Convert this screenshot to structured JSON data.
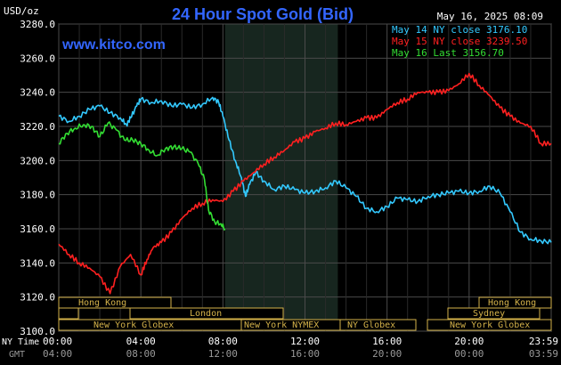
{
  "header": {
    "unit": "USD/oz",
    "title": "24 Hour Spot Gold (Bid)",
    "timestamp": "May 16, 2025 08:09",
    "site": "www.kitco.com"
  },
  "chart_data": {
    "type": "line",
    "title": "24 Hour Spot Gold (Bid)",
    "ylabel": "USD/oz",
    "ylim": [
      3100,
      3280
    ],
    "yticks": [
      "3280.0",
      "3260.0",
      "3240.0",
      "3220.0",
      "3200.0",
      "3180.0",
      "3160.0",
      "3140.0",
      "3120.0",
      "3100.0"
    ],
    "xlim_hours": [
      0,
      24
    ],
    "time_axis_labels": {
      "ny_time_label": "NY Time",
      "gmt_label": "GMT",
      "ny_time": [
        "00:00",
        "04:00",
        "08:00",
        "12:00",
        "16:00",
        "20:00",
        "23:59"
      ],
      "gmt": [
        "04:00",
        "08:00",
        "12:00",
        "16:00",
        "20:00",
        "00:00",
        "03:59"
      ]
    },
    "grid": true,
    "shaded_session_hours": [
      8.1,
      13.6
    ],
    "legend": {
      "placement": "top-right"
    },
    "series": [
      {
        "name": "May 14 NY close 3176.10",
        "color": "#33c9ff",
        "x": [
          0,
          0.5,
          1,
          1.5,
          2,
          2.5,
          3,
          3.3,
          3.5,
          3.8,
          4,
          4.5,
          5,
          5.5,
          6,
          6.5,
          7,
          7.5,
          7.8,
          8,
          8.3,
          8.6,
          8.9,
          9.1,
          9.3,
          9.6,
          10,
          10.5,
          11,
          11.5,
          12,
          12.5,
          13,
          13.5,
          14,
          14.5,
          15,
          15.5,
          16,
          16.5,
          17,
          17.5,
          18,
          18.5,
          19,
          19.5,
          20,
          20.5,
          21,
          21.5,
          22,
          22.5,
          23,
          23.5,
          24
        ],
        "values": [
          3226,
          3223,
          3226,
          3230,
          3232,
          3228,
          3225,
          3221,
          3225,
          3232,
          3236,
          3234,
          3235,
          3232,
          3233,
          3231,
          3233,
          3237,
          3234,
          3226,
          3212,
          3200,
          3190,
          3179,
          3186,
          3193,
          3188,
          3183,
          3185,
          3183,
          3181,
          3182,
          3184,
          3188,
          3184,
          3179,
          3172,
          3170,
          3173,
          3178,
          3177,
          3176,
          3179,
          3180,
          3181,
          3182,
          3181,
          3182,
          3185,
          3181,
          3170,
          3158,
          3154,
          3153,
          3152
        ]
      },
      {
        "name": "May 15 NY close 3239.50",
        "color": "#ff2020",
        "x": [
          0,
          0.5,
          1,
          1.5,
          2,
          2.5,
          3,
          3.5,
          4,
          4.3,
          4.6,
          5,
          5.5,
          6,
          6.5,
          7,
          7.5,
          8,
          8.5,
          9,
          9.5,
          10,
          10.5,
          11,
          11.5,
          12,
          12.5,
          13,
          13.5,
          14,
          14.5,
          15,
          15.5,
          16,
          16.5,
          17,
          17.5,
          18,
          18.5,
          19,
          19.5,
          20,
          20.5,
          21,
          21.5,
          22,
          22.5,
          23,
          23.5,
          24
        ],
        "values": [
          3151,
          3145,
          3140,
          3137,
          3132,
          3122,
          3138,
          3145,
          3133,
          3142,
          3149,
          3152,
          3158,
          3166,
          3172,
          3175,
          3177,
          3176,
          3182,
          3188,
          3193,
          3198,
          3202,
          3206,
          3211,
          3213,
          3217,
          3219,
          3222,
          3221,
          3223,
          3225,
          3225,
          3230,
          3234,
          3236,
          3240,
          3240,
          3240,
          3241,
          3245,
          3251,
          3244,
          3238,
          3231,
          3226,
          3222,
          3220,
          3210,
          3210
        ]
      },
      {
        "name": "May 16 Last 3156.70",
        "color": "#33dd33",
        "x": [
          0,
          0.4,
          0.8,
          1.2,
          1.6,
          2,
          2.4,
          2.8,
          3.2,
          3.6,
          4,
          4.4,
          4.8,
          5.2,
          5.6,
          6,
          6.4,
          6.8,
          7.1,
          7.3,
          7.6,
          7.9,
          8.1
        ],
        "values": [
          3210,
          3216,
          3219,
          3221,
          3220,
          3214,
          3222,
          3218,
          3212,
          3212,
          3210,
          3206,
          3203,
          3207,
          3208,
          3207,
          3205,
          3198,
          3189,
          3171,
          3164,
          3163,
          3160
        ]
      }
    ]
  },
  "markets": {
    "hong_kong": "Hong Kong",
    "london": "London",
    "new_york_globex": "New York Globex",
    "new_york_nymex": "New York NYMEX",
    "ny_globex": "NY Globex",
    "sydney": "Sydney"
  }
}
